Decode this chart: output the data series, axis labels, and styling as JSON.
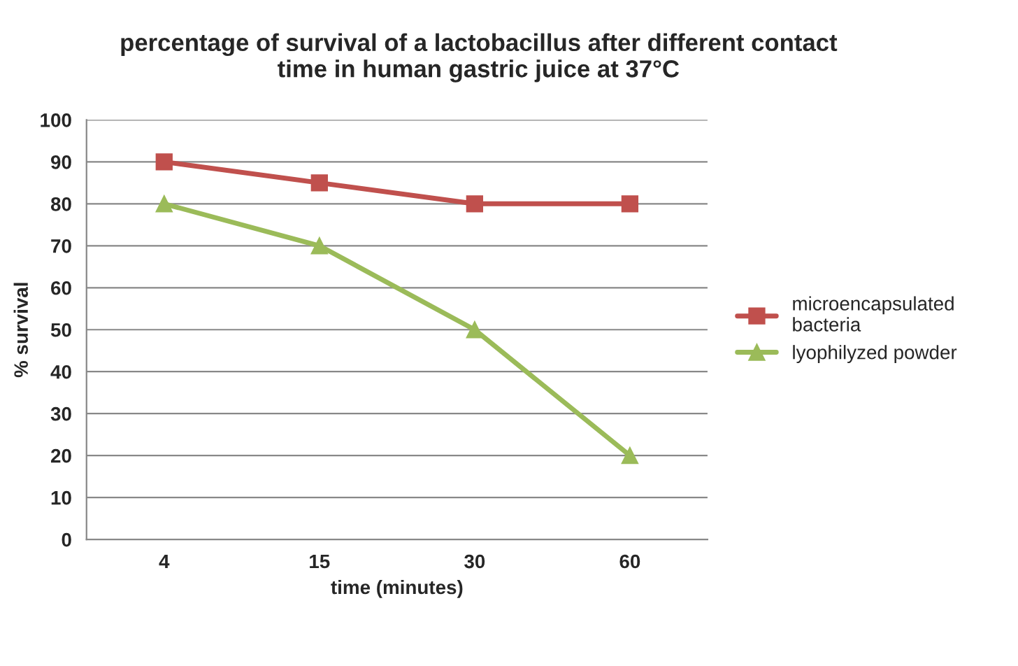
{
  "chart_data": {
    "type": "line",
    "title": "percentage of survival of a lactobacillus after different contact\ntime in human gastric juice at 37°C",
    "xlabel": "time (minutes)",
    "ylabel": "% survival",
    "categories": [
      "4",
      "15",
      "30",
      "60"
    ],
    "series": [
      {
        "name": "microencapsulated\nbacteria",
        "color": "#c0504d",
        "marker": "square",
        "values": [
          90,
          85,
          80,
          80
        ]
      },
      {
        "name": "lyophilyzed powder",
        "color": "#9bbb59",
        "marker": "triangle",
        "values": [
          80,
          70,
          50,
          20
        ]
      }
    ],
    "ylim": [
      0,
      100
    ],
    "yticks": [
      0,
      10,
      20,
      30,
      40,
      50,
      60,
      70,
      80,
      90,
      100
    ],
    "grid": "y",
    "legend": "right"
  }
}
